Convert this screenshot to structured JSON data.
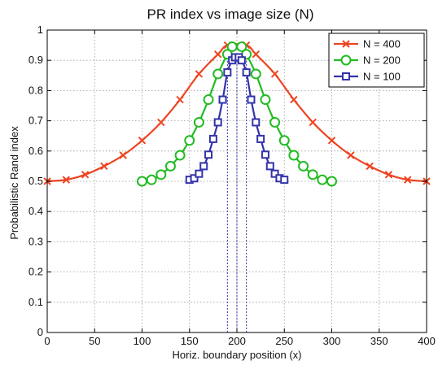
{
  "chart_data": {
    "type": "line",
    "title": "PR index vs image size (N)",
    "xlabel": "Horiz. boundary position (x)",
    "ylabel": "Probabilistic Rand index",
    "xlim": [
      0,
      400
    ],
    "ylim": [
      0,
      1
    ],
    "xticks": [
      0,
      50,
      100,
      150,
      200,
      250,
      300,
      350,
      400
    ],
    "yticks": [
      0,
      0.1,
      0.2,
      0.3,
      0.4,
      0.5,
      0.6,
      0.7,
      0.8,
      0.9,
      1
    ],
    "grid": true,
    "legend_position": "top-right",
    "series": [
      {
        "name": "N = 400",
        "color": "#ee4422",
        "marker": "x",
        "x": [
          0,
          20,
          40,
          60,
          80,
          100,
          120,
          140,
          160,
          180,
          190,
          210,
          220,
          240,
          260,
          280,
          300,
          320,
          340,
          360,
          380,
          400
        ],
        "y": [
          0.5,
          0.505,
          0.522,
          0.55,
          0.586,
          0.635,
          0.695,
          0.77,
          0.855,
          0.92,
          0.95,
          0.95,
          0.92,
          0.855,
          0.77,
          0.695,
          0.635,
          0.586,
          0.55,
          0.522,
          0.505,
          0.5
        ]
      },
      {
        "name": "N = 200",
        "color": "#22bb22",
        "marker": "circle",
        "x": [
          100,
          110,
          120,
          130,
          140,
          150,
          160,
          170,
          180,
          190,
          195,
          205,
          210,
          220,
          230,
          240,
          250,
          260,
          270,
          280,
          290,
          300
        ],
        "y": [
          0.5,
          0.505,
          0.522,
          0.55,
          0.586,
          0.635,
          0.695,
          0.77,
          0.855,
          0.92,
          0.945,
          0.945,
          0.92,
          0.855,
          0.77,
          0.695,
          0.635,
          0.586,
          0.55,
          0.522,
          0.505,
          0.5
        ]
      },
      {
        "name": "N = 100",
        "color": "#3333aa",
        "marker": "square",
        "x": [
          150,
          155,
          160,
          165,
          170,
          175,
          180,
          185,
          190,
          195,
          198,
          202,
          205,
          210,
          215,
          220,
          225,
          230,
          235,
          240,
          245,
          250
        ],
        "y": [
          0.505,
          0.51,
          0.525,
          0.55,
          0.588,
          0.64,
          0.695,
          0.77,
          0.86,
          0.9,
          0.91,
          0.91,
          0.9,
          0.86,
          0.77,
          0.695,
          0.64,
          0.588,
          0.55,
          0.525,
          0.51,
          0.505
        ]
      }
    ]
  }
}
